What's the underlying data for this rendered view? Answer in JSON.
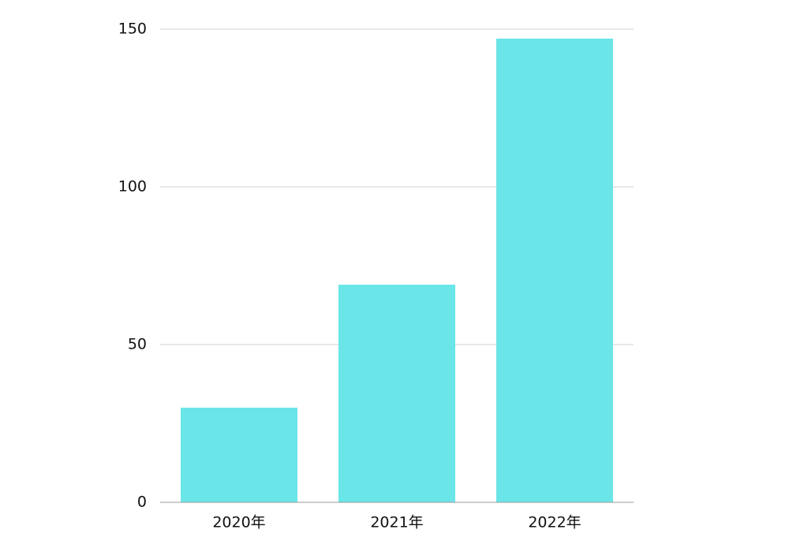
{
  "chart_data": {
    "type": "bar",
    "categories": [
      "2020年",
      "2021年",
      "2022年"
    ],
    "values": [
      30,
      69,
      147
    ],
    "color": "#6ae5e8",
    "ylim": [
      0,
      150
    ],
    "yticks": [
      0,
      50,
      100,
      150
    ],
    "grid": true
  }
}
